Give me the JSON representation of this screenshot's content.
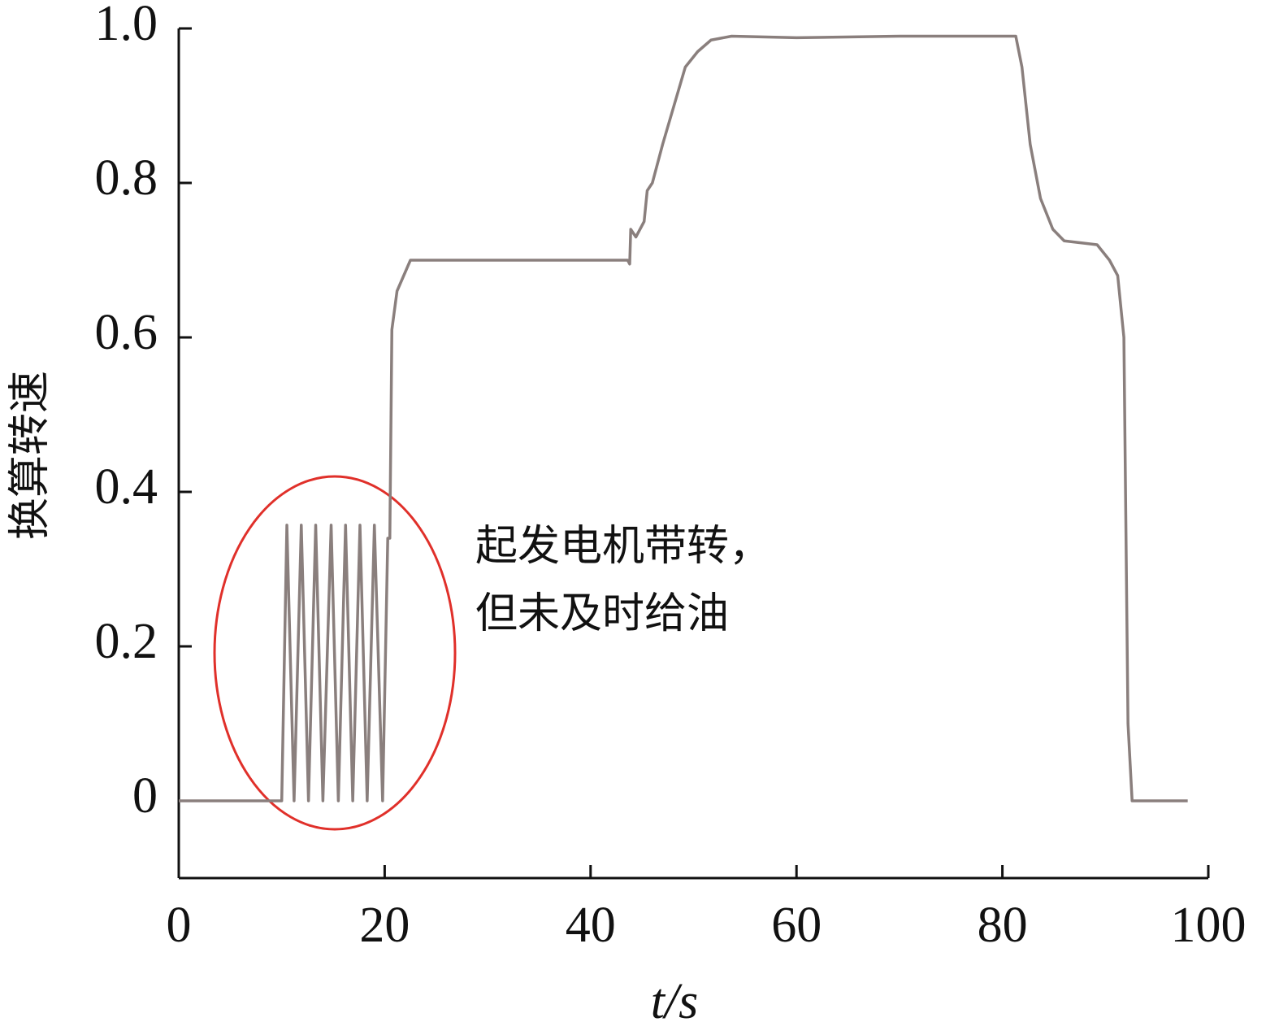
{
  "chart_data": {
    "type": "line",
    "xlabel": "t/s",
    "ylabel": "换算转速",
    "annotation": [
      "起发电机带转，",
      "但未及时给油"
    ],
    "color": "#8a7f7d",
    "x": [
      0,
      10,
      10.5,
      11.2,
      11.9,
      12.6,
      13.3,
      14.0,
      14.8,
      15.5,
      16.2,
      16.9,
      17.6,
      18.3,
      19.0,
      19.8,
      20.3,
      20.5,
      20.7,
      21.2,
      22.5,
      30,
      40,
      43.6,
      43.8,
      43.9,
      44.4,
      45.2,
      45.5,
      46,
      47,
      48.1,
      49.2,
      50.4,
      51.7,
      53.7,
      60,
      70,
      72,
      80,
      81.3,
      81.9,
      82.7,
      83.7,
      84.9,
      86,
      89.2,
      90.4,
      91.2,
      91.8,
      92.2,
      92.6,
      98
    ],
    "values": [
      0,
      0,
      0.357,
      0,
      0.357,
      0,
      0.357,
      0,
      0.357,
      0,
      0.357,
      0,
      0.357,
      0,
      0.357,
      0,
      0.34,
      0.34,
      0.61,
      0.66,
      0.7,
      0.7,
      0.7,
      0.7,
      0.695,
      0.74,
      0.73,
      0.75,
      0.79,
      0.8,
      0.85,
      0.9,
      0.95,
      0.97,
      0.985,
      0.99,
      0.988,
      0.99,
      0.99,
      0.99,
      0.99,
      0.95,
      0.85,
      0.78,
      0.74,
      0.725,
      0.72,
      0.7,
      0.68,
      0.6,
      0.1,
      0,
      0
    ],
    "xlim": [
      0,
      100
    ],
    "xticks": [
      0,
      20,
      40,
      60,
      80,
      100
    ],
    "ylim": [
      -0.1,
      1.0
    ],
    "yticks": [
      0,
      0.2,
      0.4,
      0.6,
      0.8,
      {
        "value": 1,
        "label": "1.0"
      }
    ]
  }
}
